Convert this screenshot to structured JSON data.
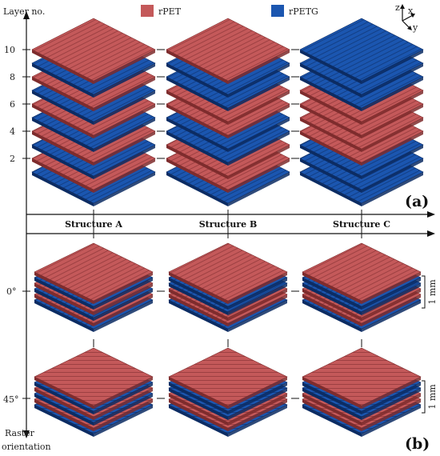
{
  "labels": {
    "layer_axis": "Layer no.",
    "raster_axis_line1": "Raster",
    "raster_axis_line2": "orientation",
    "panel_a": "(a)",
    "panel_b": "(b)",
    "dimension": "1 mm"
  },
  "legend": [
    {
      "label": "rPET",
      "color": "#c4595a"
    },
    {
      "label": "rPETG",
      "color": "#1b56b0"
    }
  ],
  "axes_triad": {
    "z": "z",
    "x": "x",
    "y": "y"
  },
  "structures": [
    {
      "label": "Structure A"
    },
    {
      "label": "Structure B"
    },
    {
      "label": "Structure C"
    }
  ],
  "layer_ticks": [
    "2",
    "4",
    "6",
    "8",
    "10"
  ],
  "raster_ticks": [
    "0°",
    "45°"
  ],
  "colors": {
    "rPET": "#c4595a",
    "rPET_dark": "#7e2c2d",
    "rPETG": "#1b56b0",
    "rPETG_dark": "#0c2c63",
    "axis": "#111111"
  },
  "stacks_a": {
    "A": [
      "rPETG",
      "rPET",
      "rPETG",
      "rPET",
      "rPETG",
      "rPET",
      "rPETG",
      "rPET",
      "rPETG",
      "rPET"
    ],
    "B": [
      "rPETG",
      "rPET",
      "rPET",
      "rPETG",
      "rPETG",
      "rPET",
      "rPET",
      "rPETG",
      "rPETG",
      "rPET"
    ],
    "C": [
      "rPETG",
      "rPETG",
      "rPETG",
      "rPET",
      "rPET",
      "rPET",
      "rPET",
      "rPETG",
      "rPETG",
      "rPETG"
    ]
  },
  "stacks_b": {
    "A": [
      "rPETG",
      "rPET",
      "rPETG",
      "rPET",
      "rPETG",
      "rPET"
    ],
    "B": [
      "rPETG",
      "rPET",
      "rPET",
      "rPETG",
      "rPETG",
      "rPET"
    ],
    "C": [
      "rPETG",
      "rPET",
      "rPET",
      "rPETG",
      "rPETG",
      "rPET"
    ]
  }
}
